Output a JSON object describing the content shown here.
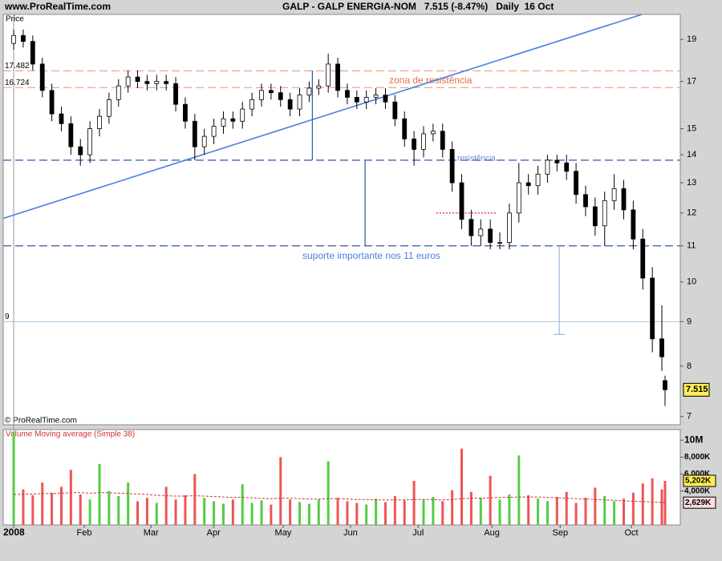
{
  "chart_data": [
    {
      "type": "candlestick",
      "site": "www.ProRealTime.com",
      "title": "GALP - GALP ENERGIA-NOM   7.515 (-8.47%)   Daily  16 Oct",
      "ylabel": "Price",
      "copyright": "© ProRealTime.com",
      "log_scale": true,
      "up_color": "#ffffff",
      "down_color": "#000000",
      "x": [
        0,
        3,
        6,
        9,
        12,
        15,
        18,
        21,
        24,
        27,
        30,
        33,
        36,
        39,
        42,
        45,
        48,
        51,
        54,
        57,
        60,
        63,
        66,
        69,
        72,
        75,
        78,
        81,
        84,
        87,
        90,
        93,
        96,
        99,
        102,
        105,
        108,
        111,
        114,
        117,
        120,
        123,
        126,
        129,
        132,
        135,
        138,
        141,
        144,
        147,
        150,
        153,
        156,
        159,
        162,
        165,
        168,
        171,
        174,
        177,
        180,
        183,
        186,
        189,
        192,
        195,
        198,
        201,
        204,
        205
      ],
      "open": [
        18.8,
        19.2,
        18.9,
        17.8,
        16.6,
        15.6,
        15.2,
        14.3,
        14.0,
        15.0,
        15.5,
        16.2,
        16.8,
        17.2,
        17.0,
        16.9,
        17.0,
        16.9,
        16.0,
        15.3,
        14.3,
        14.7,
        15.1,
        15.4,
        15.3,
        15.8,
        16.2,
        16.6,
        16.5,
        16.2,
        15.8,
        16.4,
        16.7,
        16.8,
        17.8,
        16.6,
        16.3,
        16.1,
        16.3,
        16.4,
        16.1,
        15.4,
        14.6,
        14.2,
        14.8,
        14.9,
        14.2,
        13.0,
        11.8,
        11.3,
        11.5,
        11.1,
        11.1,
        12.0,
        13.0,
        12.9,
        13.3,
        13.8,
        13.7,
        13.4,
        12.6,
        12.2,
        11.6,
        12.4,
        12.8,
        12.1,
        11.2,
        10.1,
        8.6,
        7.7
      ],
      "high": [
        19.5,
        19.5,
        19.2,
        18.1,
        16.9,
        15.9,
        15.5,
        14.6,
        15.3,
        15.8,
        16.5,
        17.1,
        17.5,
        17.5,
        17.3,
        17.3,
        17.3,
        17.2,
        16.3,
        15.6,
        15.0,
        15.4,
        15.7,
        15.7,
        16.1,
        16.5,
        16.9,
        16.9,
        16.8,
        16.5,
        16.7,
        17.0,
        17.1,
        18.3,
        18.1,
        16.9,
        16.6,
        16.6,
        16.7,
        16.7,
        16.4,
        15.7,
        14.9,
        15.1,
        15.2,
        15.2,
        14.5,
        13.3,
        12.1,
        11.8,
        11.8,
        11.4,
        12.3,
        13.7,
        13.3,
        13.6,
        14.0,
        14.0,
        14.0,
        13.7,
        12.9,
        12.5,
        12.7,
        13.3,
        13.1,
        12.4,
        11.5,
        10.4,
        9.4,
        7.8
      ],
      "low": [
        18.5,
        18.6,
        17.5,
        16.3,
        15.3,
        14.9,
        14.0,
        13.6,
        13.7,
        14.7,
        15.2,
        15.9,
        16.5,
        16.7,
        16.6,
        16.6,
        16.6,
        15.7,
        15.0,
        13.8,
        14.0,
        14.4,
        14.8,
        15.0,
        15.0,
        15.5,
        15.9,
        16.2,
        15.9,
        15.5,
        15.5,
        16.1,
        16.4,
        16.5,
        16.3,
        16.0,
        15.8,
        15.8,
        16.0,
        15.8,
        15.1,
        14.3,
        13.6,
        13.9,
        14.5,
        13.9,
        12.7,
        11.5,
        11.0,
        11.0,
        10.9,
        10.9,
        10.9,
        11.7,
        12.6,
        12.6,
        13.0,
        13.4,
        13.1,
        12.3,
        11.9,
        11.3,
        11.0,
        12.1,
        11.8,
        10.9,
        9.8,
        8.3,
        7.9,
        7.2
      ],
      "close": [
        19.2,
        18.9,
        17.8,
        16.6,
        15.6,
        15.2,
        14.3,
        14.0,
        15.0,
        15.5,
        16.2,
        16.8,
        17.2,
        17.0,
        16.9,
        17.0,
        16.9,
        16.0,
        15.3,
        14.3,
        14.7,
        15.1,
        15.4,
        15.3,
        15.8,
        16.2,
        16.6,
        16.5,
        16.2,
        15.8,
        16.4,
        16.7,
        16.8,
        17.8,
        16.6,
        16.3,
        16.1,
        16.3,
        16.4,
        16.1,
        15.4,
        14.6,
        14.2,
        14.8,
        14.9,
        14.2,
        13.0,
        11.8,
        11.3,
        11.5,
        11.1,
        11.1,
        12.0,
        13.0,
        12.9,
        13.3,
        13.8,
        13.7,
        13.4,
        12.6,
        12.2,
        11.6,
        12.4,
        12.8,
        12.1,
        11.2,
        10.1,
        8.6,
        8.2,
        7.515
      ],
      "xlim": [
        -3.3,
        209.8
      ],
      "xticks": [
        {
          "value": 0,
          "label": "2008"
        },
        {
          "value": 22.2,
          "label": "Feb"
        },
        {
          "value": 43.2,
          "label": "Mar"
        },
        {
          "value": 62.9,
          "label": "Apr"
        },
        {
          "value": 84.8,
          "label": "May"
        },
        {
          "value": 106,
          "label": "Jun"
        },
        {
          "value": 127.3,
          "label": "Jul"
        },
        {
          "value": 150.5,
          "label": "Aug"
        },
        {
          "value": 172,
          "label": "Sep"
        },
        {
          "value": 194.4,
          "label": "Oct"
        }
      ],
      "ylim": [
        6.85,
        20.3
      ],
      "yticks": [
        7,
        8,
        9,
        10,
        11,
        12,
        13,
        14,
        15,
        17,
        19
      ],
      "price_badge_color": "#ffee55",
      "hlines": [
        {
          "value": 17.482,
          "label": "17.482",
          "color": "#e8a080",
          "style": "dashed"
        },
        {
          "value": 16.724,
          "label": "16.724",
          "color": "#e8a080",
          "style": "dashed"
        },
        {
          "value": 13.8,
          "color": "#3355aa",
          "style": "dashed"
        },
        {
          "value": 11,
          "color": "#3355aa",
          "style": "dashed"
        },
        {
          "value": 9,
          "label": "9",
          "color": "#a8c4e0",
          "style": "solid"
        }
      ],
      "segments": [
        {
          "x": [
            -3.3,
            197.7
          ],
          "y": [
            11.83,
            20.3
          ],
          "color": "#4a7fe0",
          "style": "solid"
        },
        {
          "x": [
            94,
            94
          ],
          "y": [
            17.5,
            13.8
          ],
          "color": "#3355aa",
          "style": "solid"
        },
        {
          "x": [
            110.6,
            110.6
          ],
          "y": [
            13.8,
            11
          ],
          "color": "#3355aa",
          "style": "solid"
        },
        {
          "x": [
            171.7,
            171.7
          ],
          "y": [
            11,
            8.7
          ],
          "color": "#99b8dd",
          "style": "solid"
        },
        {
          "x": [
            170,
            173.4
          ],
          "y": [
            8.7,
            8.7
          ],
          "color": "#99b8dd",
          "style": "solid"
        },
        {
          "x": [
            133,
            152
          ],
          "y": [
            12,
            12
          ],
          "color": "#e02020",
          "style": "dotted"
        }
      ],
      "annotations": [
        "zona de resistência",
        "resistência",
        "suporte importante nos 11 euros"
      ]
    },
    {
      "type": "bar",
      "title": "Volume Moving average (Simple 38)",
      "up_color": "#55cc44",
      "down_color": "#ee5555",
      "ma_color": "#cc3333",
      "values": [
        11000000,
        4200000,
        3500000,
        5000000,
        3800000,
        4500000,
        6500000,
        3600000,
        3000000,
        7200000,
        4000000,
        3400000,
        5000000,
        2800000,
        3200000,
        2600000,
        4500000,
        3000000,
        3500000,
        6000000,
        3200000,
        2800000,
        2500000,
        3000000,
        4800000,
        2600000,
        2900000,
        2400000,
        8000000,
        3000000,
        2700000,
        2500000,
        3000000,
        7500000,
        3200000,
        2800000,
        2600000,
        2400000,
        3100000,
        2700000,
        3400000,
        2900000,
        5200000,
        3000000,
        3300000,
        2800000,
        4100000,
        9000000,
        3900000,
        3200000,
        5800000,
        3000000,
        3600000,
        8200000,
        3500000,
        3100000,
        2800000,
        3300000,
        3900000,
        2600000,
        3200000,
        4400000,
        3400000,
        2800000,
        3100000,
        3800000,
        4900000,
        5500000,
        4200000,
        5202000
      ],
      "ma_values": [
        3600000,
        3600000,
        3650000,
        3700000,
        3700000,
        3750000,
        3800000,
        3800000,
        3750000,
        3800000,
        3800000,
        3750000,
        3700000,
        3650000,
        3600000,
        3500000,
        3450000,
        3400000,
        3400000,
        3450000,
        3400000,
        3350000,
        3300000,
        3250000,
        3250000,
        3200000,
        3150000,
        3100000,
        3150000,
        3150000,
        3100000,
        3050000,
        3050000,
        3100000,
        3100000,
        3050000,
        3000000,
        3000000,
        2950000,
        2950000,
        2950000,
        2950000,
        3000000,
        3000000,
        3000000,
        2950000,
        3000000,
        3100000,
        3150000,
        3150000,
        3200000,
        3250000,
        3250000,
        3300000,
        3300000,
        3300000,
        3250000,
        3200000,
        3150000,
        3100000,
        3050000,
        3000000,
        2950000,
        2900000,
        2850000,
        2800000,
        2750000,
        2700000,
        2650000,
        2629000
      ],
      "ylim": [
        0,
        11250000
      ],
      "yticks": [
        {
          "value": 10000000,
          "label": "10M"
        },
        {
          "value": 8000000,
          "label": "8,000K"
        },
        {
          "value": 6000000,
          "label": "6,000K"
        },
        {
          "value": 4000000,
          "label": "4,000K"
        }
      ],
      "badges": [
        {
          "value": 5202000,
          "label": "5,202K",
          "color": "#ffee55"
        },
        {
          "value": 2629000,
          "label": "2,629K",
          "color": "#ffdddd"
        }
      ]
    }
  ]
}
